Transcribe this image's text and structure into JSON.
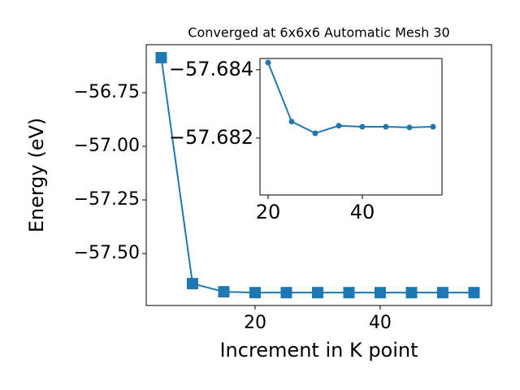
{
  "chart_data": [
    {
      "type": "line",
      "title": "Converged at 6x6x6 Automatic Mesh 30",
      "x_label": "Increment in K point",
      "y_label": "Energy (eV)",
      "x": [
        5,
        10,
        15,
        20,
        25,
        30,
        35,
        40,
        45,
        50,
        55
      ],
      "series": [
        {
          "color": "#1f77b4",
          "marker": "square",
          "values": [
            -56.587,
            -57.64,
            -57.678,
            -57.682,
            -57.682,
            -57.682,
            -57.682,
            -57.682,
            -57.682,
            -57.682,
            -57.682
          ]
        }
      ],
      "xlim": [
        2.6,
        57.8
      ],
      "ylim": [
        -57.742,
        -56.5265
      ],
      "xticks": [
        20,
        40
      ],
      "yticks": [
        {
          "value": -57.5,
          "label": "−57.50"
        },
        {
          "value": -57.25,
          "label": "−57.25"
        },
        {
          "value": -57.0,
          "label": "−57.00"
        },
        {
          "value": -56.75,
          "label": "−56.75"
        }
      ]
    },
    {
      "type": "line",
      "x": [
        20,
        25,
        30,
        35,
        40,
        45,
        50,
        55
      ],
      "series": [
        {
          "color": "#1f77b4",
          "marker": "circle",
          "values": [
            -57.68421,
            -57.68248,
            -57.68214,
            -57.68236,
            -57.68233,
            -57.68233,
            -57.68231,
            -57.68233
          ]
        }
      ],
      "xlim": [
        18.28,
        56.9
      ],
      "ylim": [
        -57.68033,
        -57.68433
      ],
      "xticks": [
        20,
        40
      ],
      "yticks": [
        {
          "value": -57.682,
          "label": "−57.682"
        },
        {
          "value": -57.684,
          "label": "−57.684"
        }
      ]
    }
  ]
}
